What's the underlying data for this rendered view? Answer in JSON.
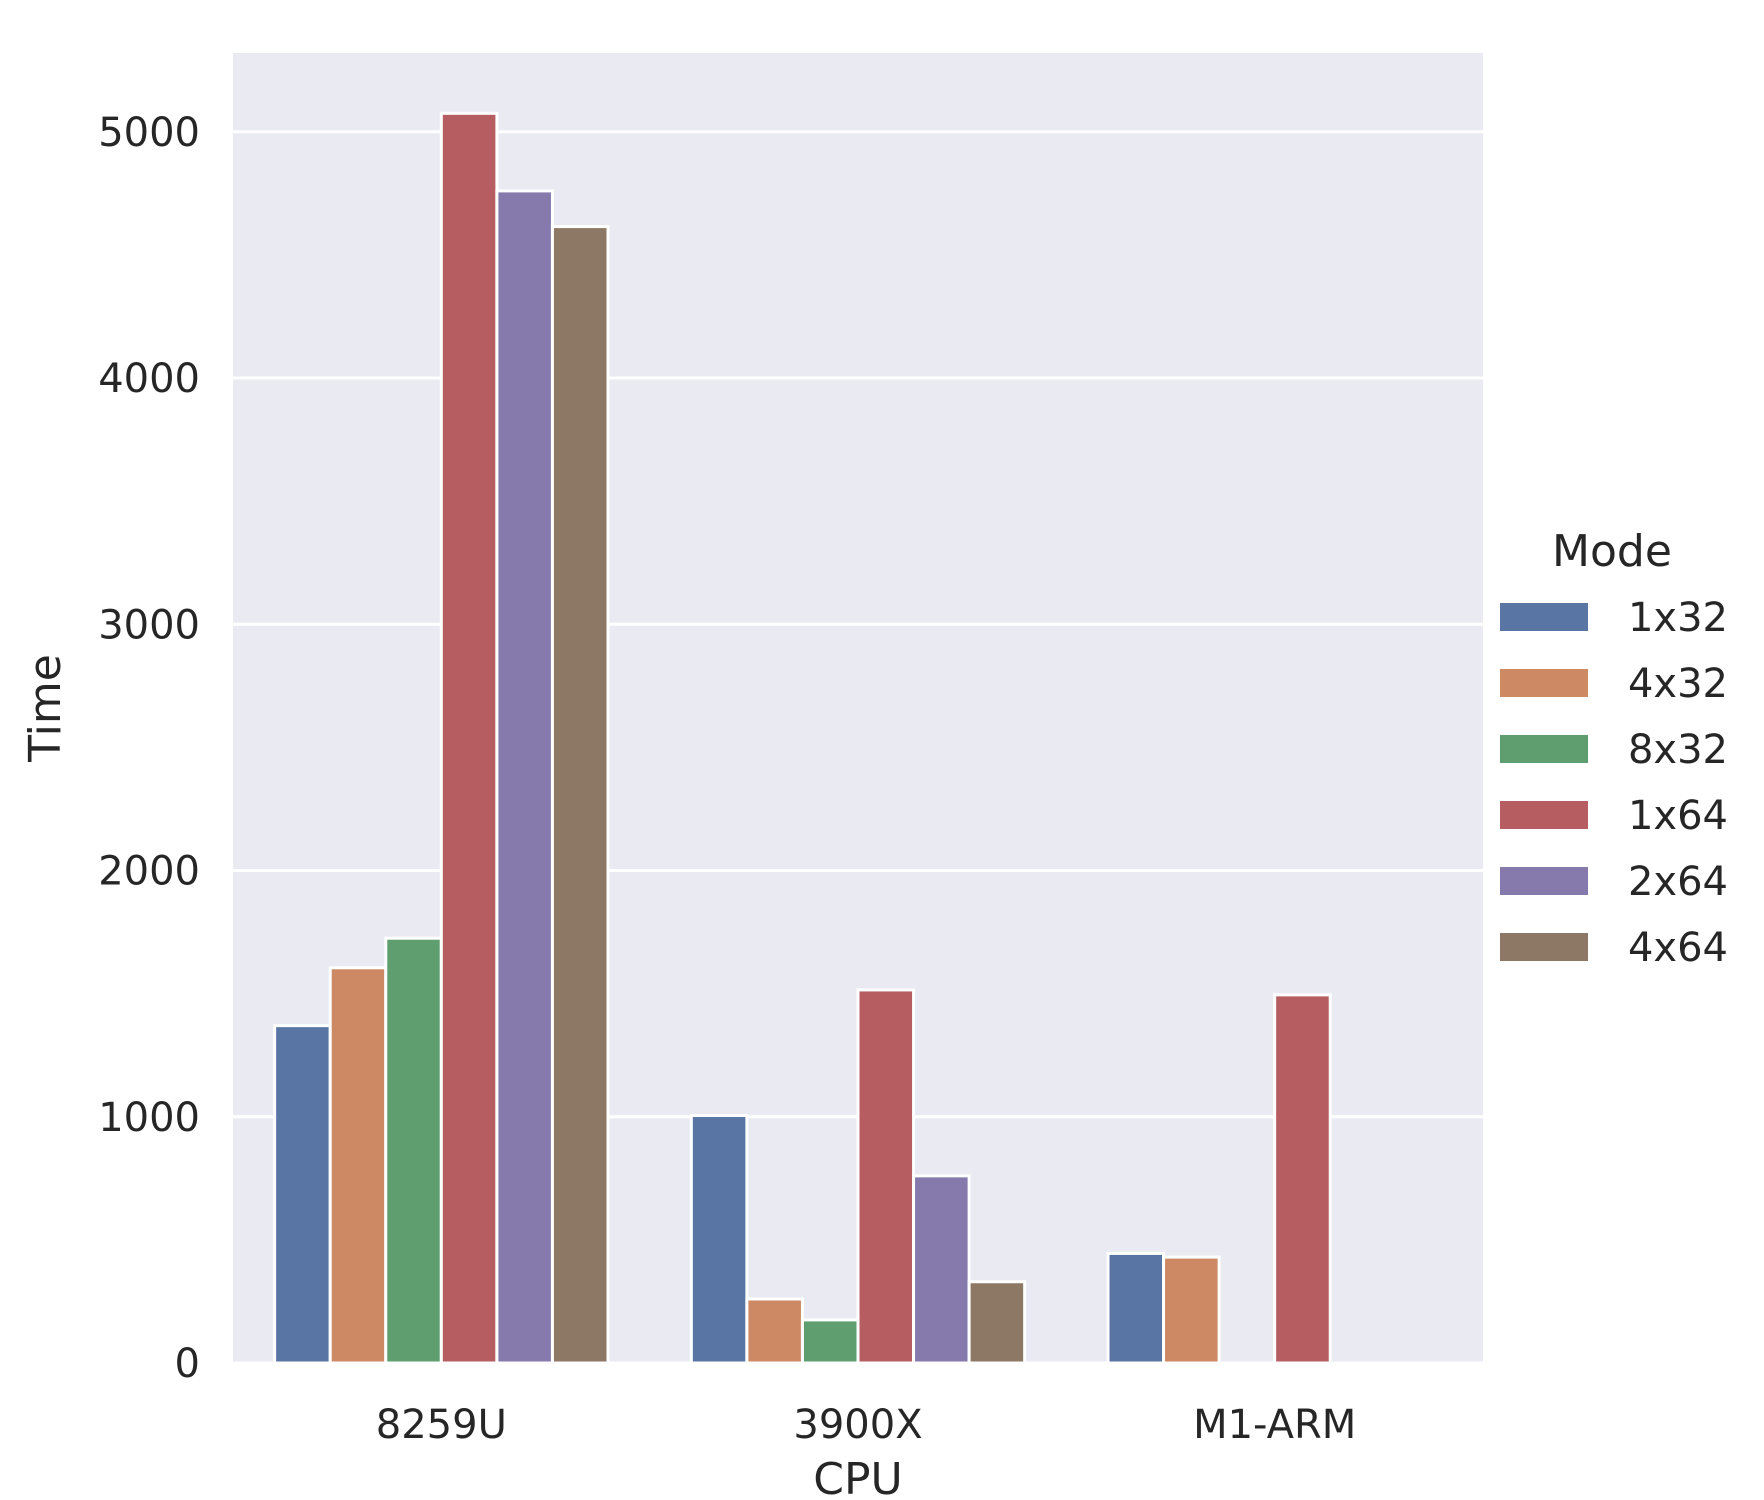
{
  "chart_data": {
    "type": "bar",
    "title": "",
    "xlabel": "CPU",
    "ylabel": "Time",
    "categories": [
      "8259U",
      "3900X",
      "M1-ARM"
    ],
    "ylim": [
      0,
      5320
    ],
    "yticks": [
      0,
      1000,
      2000,
      3000,
      4000,
      5000
    ],
    "grid": true,
    "legend": {
      "title": "Mode",
      "placement": "right"
    },
    "series": [
      {
        "name": "1x32",
        "color": "#5875a4",
        "values": [
          1370,
          1005,
          445
        ]
      },
      {
        "name": "4x32",
        "color": "#cc8963",
        "values": [
          1605,
          260,
          430
        ]
      },
      {
        "name": "8x32",
        "color": "#5f9e6e",
        "values": [
          1725,
          175,
          null
        ]
      },
      {
        "name": "1x64",
        "color": "#b55d60",
        "values": [
          5075,
          1515,
          1495
        ]
      },
      {
        "name": "2x64",
        "color": "#857aab",
        "values": [
          4760,
          760,
          null
        ]
      },
      {
        "name": "4x64",
        "color": "#8d7866",
        "values": [
          4615,
          330,
          null
        ]
      }
    ]
  }
}
